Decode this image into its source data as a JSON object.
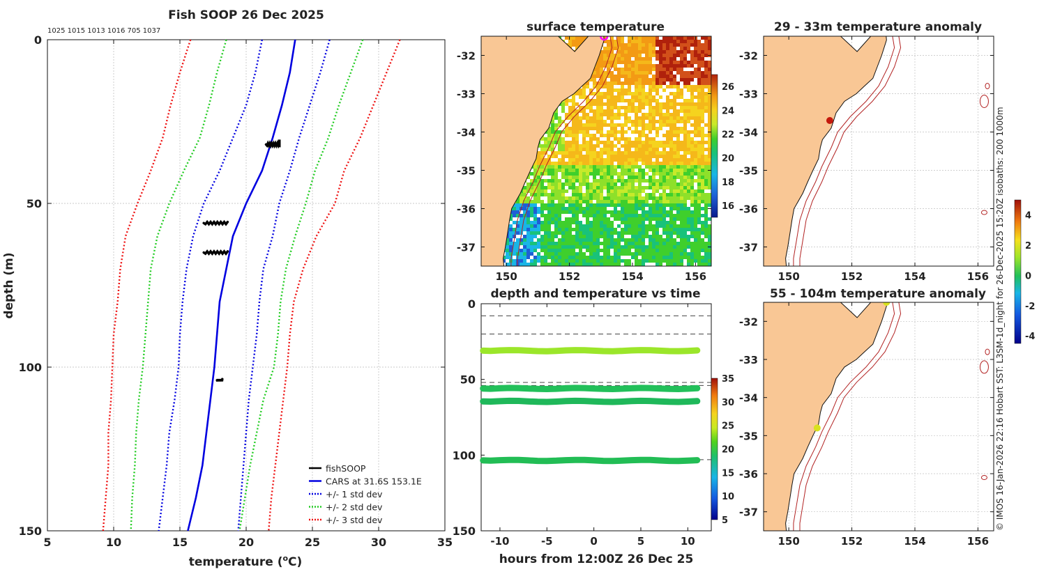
{
  "profile": {
    "title": "Fish SOOP 26 Dec 2025",
    "codes": "1025 1015 1013 1016 705 1037",
    "xlabel": "temperature (°C)",
    "xlabel_main": "temperature (",
    "xlabel_unit": "o",
    "xlabel_tail": "C)",
    "ylabel": "depth (m)",
    "xlim": [
      5,
      35
    ],
    "ylim": [
      0,
      150
    ],
    "x_ticks": [
      "5",
      "10",
      "15",
      "20",
      "25",
      "30",
      "35"
    ],
    "y_ticks": [
      "0",
      "50",
      "100",
      "150"
    ],
    "legend": [
      {
        "label": "fishSOOP",
        "color": "#000000",
        "style": "solid"
      },
      {
        "label": "CARS at 31.6S 153.1E",
        "color": "#0000e0",
        "style": "solid"
      },
      {
        "label": "+/- 1 std dev",
        "color": "#0000e0",
        "style": "dotted"
      },
      {
        "label": "+/- 2 std dev",
        "color": "#22cc22",
        "style": "dotted"
      },
      {
        "label": "+/- 3 std dev",
        "color": "#ee1111",
        "style": "dotted"
      }
    ]
  },
  "chart_data": [
    {
      "type": "line",
      "title": "Fish SOOP 26 Dec 2025",
      "xlabel": "temperature (oC)",
      "ylabel": "depth (m)",
      "xlim": [
        5,
        35
      ],
      "ylim": [
        150,
        0
      ],
      "depth": [
        0,
        10,
        20,
        30,
        40,
        50,
        60,
        70,
        80,
        90,
        100,
        110,
        120,
        130,
        140,
        150
      ],
      "series": [
        {
          "name": "CARS mean",
          "values": [
            23.7,
            23.3,
            22.7,
            22.0,
            21.2,
            20.0,
            19.0,
            18.5,
            18.0,
            17.8,
            17.6,
            17.3,
            17.0,
            16.7,
            16.2,
            15.6
          ]
        },
        {
          "name": "-1 std",
          "values": [
            21.2,
            20.7,
            20.0,
            19.0,
            18.0,
            16.8,
            16.0,
            15.5,
            15.2,
            15.0,
            14.9,
            14.6,
            14.2,
            14.0,
            13.7,
            13.4
          ]
        },
        {
          "name": "+1 std",
          "values": [
            26.3,
            25.6,
            24.8,
            24.0,
            23.3,
            22.5,
            22.0,
            21.3,
            21.0,
            20.8,
            20.5,
            20.2,
            20.0,
            19.8,
            19.6,
            19.4
          ]
        },
        {
          "name": "-2 std",
          "values": [
            18.5,
            17.8,
            17.2,
            16.5,
            15.3,
            14.2,
            13.3,
            12.8,
            12.6,
            12.4,
            12.2,
            11.9,
            11.7,
            11.6,
            11.4,
            11.3
          ]
        },
        {
          "name": "+2 std",
          "values": [
            28.8,
            27.9,
            27.0,
            26.2,
            25.2,
            24.5,
            23.7,
            23.0,
            22.6,
            22.4,
            22.1,
            21.3,
            20.8,
            20.3,
            19.9,
            19.5
          ]
        },
        {
          "name": "-3 std",
          "values": [
            15.8,
            15.0,
            14.3,
            13.7,
            12.8,
            11.8,
            10.9,
            10.5,
            10.3,
            10.0,
            9.9,
            9.8,
            9.6,
            9.6,
            9.4,
            9.2
          ]
        },
        {
          "name": "+3 std",
          "values": [
            31.6,
            30.6,
            29.6,
            28.6,
            27.4,
            26.7,
            25.3,
            24.3,
            23.6,
            23.3,
            23.1,
            22.8,
            22.5,
            22.2,
            21.9,
            21.7
          ]
        }
      ],
      "observations": [
        {
          "name": "fishSOOP",
          "temp_range": [
            21.5,
            22.5
          ],
          "depth": 32
        },
        {
          "name": "fishSOOP",
          "temp_range": [
            16.8,
            18.6
          ],
          "depth": 56
        },
        {
          "name": "fishSOOP",
          "temp_range": [
            16.8,
            18.6
          ],
          "depth": 65
        },
        {
          "name": "fishSOOP",
          "temp_range": [
            17.8,
            18.2
          ],
          "depth": 104
        }
      ]
    },
    {
      "type": "heatmap",
      "title": "surface temperature",
      "x_ticks": [
        "150",
        "152",
        "154",
        "156"
      ],
      "y_ticks": [
        "-32",
        "-33",
        "-34",
        "-35",
        "-36",
        "-37"
      ],
      "colorbar_ticks": [
        "26",
        "24",
        "22",
        "20",
        "18",
        "16"
      ],
      "colorbar_range": [
        15,
        27
      ]
    },
    {
      "type": "scatter",
      "title": "depth and temperature vs time",
      "xlabel": "hours from 12:00Z 26 Dec 25",
      "x_ticks": [
        "-10",
        "-5",
        "0",
        "5",
        "10"
      ],
      "y_ticks": [
        "0",
        "50",
        "100",
        "150"
      ],
      "xlim": [
        -12,
        12.5
      ],
      "ylim": [
        150,
        0
      ],
      "ref_depths": [
        8,
        20,
        52,
        54,
        103
      ],
      "series": [
        {
          "name": "band 1",
          "depth": 31,
          "temp": 22,
          "color": "#9be62a"
        },
        {
          "name": "band 2",
          "depth": 56,
          "temp": 19,
          "color": "#22c05a"
        },
        {
          "name": "band 3",
          "depth": 64.5,
          "temp": 18.5,
          "color": "#1fb85a"
        },
        {
          "name": "band 4",
          "depth": 103.5,
          "temp": 18.5,
          "color": "#22bd55"
        }
      ],
      "colorbar_ticks": [
        "35",
        "30",
        "25",
        "20",
        "15",
        "10",
        "5"
      ],
      "colorbar_range": [
        5,
        35
      ]
    },
    {
      "type": "scatter",
      "title": "29 - 33m temperature anomaly",
      "x_ticks": [
        "150",
        "152",
        "154",
        "156"
      ],
      "y_ticks": [
        "-32",
        "-33",
        "-34",
        "-35",
        "-36",
        "-37"
      ],
      "points": [
        {
          "lon": 151.3,
          "lat": -33.7,
          "anomaly": 3.6
        }
      ]
    },
    {
      "type": "scatter",
      "title": "55 - 104m temperature anomaly",
      "x_ticks": [
        "150",
        "152",
        "154",
        "156"
      ],
      "y_ticks": [
        "-32",
        "-33",
        "-34",
        "-35",
        "-36",
        "-37"
      ],
      "points": [
        {
          "lon": 150.9,
          "lat": -34.8,
          "anomaly": 1.5
        },
        {
          "lon": 153.1,
          "lat": -31.5,
          "anomaly": 1.5
        }
      ],
      "colorbar_ticks": [
        "4",
        "2",
        "0",
        "-2",
        "-4"
      ],
      "colorbar_range": [
        -4.5,
        5
      ]
    }
  ],
  "sst": {
    "title": "surface temperature",
    "x_ticks": [
      "150",
      "152",
      "154",
      "156"
    ],
    "y_ticks": [
      "-32",
      "-33",
      "-34",
      "-35",
      "-36",
      "-37"
    ],
    "cbar_ticks": [
      "26",
      "24",
      "22",
      "20",
      "18",
      "16"
    ]
  },
  "dvt": {
    "title": "depth and temperature vs time",
    "xlabel": "hours from 12:00Z 26 Dec 25",
    "x_ticks": [
      "-10",
      "-5",
      "0",
      "5",
      "10"
    ],
    "y_ticks": [
      "0",
      "50",
      "100",
      "150"
    ],
    "cbar_ticks": [
      "35",
      "30",
      "25",
      "20",
      "15",
      "10",
      "5"
    ]
  },
  "anom1": {
    "title": "29 - 33m temperature anomaly",
    "x_ticks": [
      "150",
      "152",
      "154",
      "156"
    ],
    "y_ticks": [
      "-32",
      "-33",
      "-34",
      "-35",
      "-36",
      "-37"
    ]
  },
  "anom2": {
    "title": "55 - 104m temperature anomaly",
    "x_ticks": [
      "150",
      "152",
      "154",
      "156"
    ],
    "y_ticks": [
      "-32",
      "-33",
      "-34",
      "-35",
      "-36",
      "-37"
    ],
    "cbar_ticks": [
      "4",
      "2",
      "0",
      "-2",
      "-4"
    ]
  },
  "credit": "© IMOS 16-Jan-2026 22:16 Hobart SST: L3SM-1d_night for 26-Dec-2025 15:20Z isobaths: 200  1000m",
  "colors": {
    "land": "#f9c795",
    "cars": "#0000e0",
    "std1": "#0000e0",
    "std2": "#22cc22",
    "std3": "#ee1111"
  }
}
